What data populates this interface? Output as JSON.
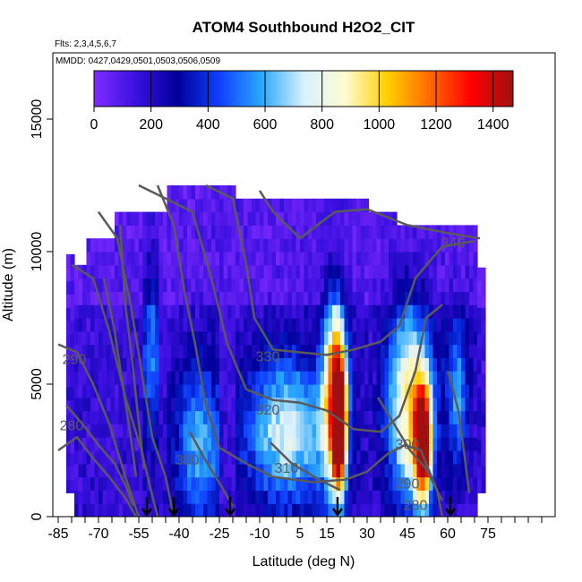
{
  "chart_data": {
    "type": "heatmap",
    "title": "ATOM4 Southbound H2O2_CIT",
    "subtitle_flights": "Flts: 2,3,4,5,6,7",
    "subtitle_dates": "MMDD: 0427,0429,0501,0503,0506,0509",
    "xlabel": "Latitude (deg N)",
    "ylabel": "Altitude (m)",
    "xlim": [
      -87,
      100
    ],
    "ylim": [
      0,
      17500
    ],
    "x_ticks": [
      -85,
      -70,
      -55,
      -40,
      -25,
      -10,
      5,
      15,
      30,
      45,
      60,
      75
    ],
    "x_tick_labels": [
      "-85",
      "-70",
      "-55",
      "-40",
      "-25",
      "-10",
      "5",
      "15",
      "30",
      "45",
      "60",
      "75"
    ],
    "y_ticks": [
      0,
      5000,
      10000,
      15000
    ],
    "y_tick_labels": [
      "0",
      "5000",
      "10000",
      "15000"
    ],
    "colorbar": {
      "range": [
        0,
        1470
      ],
      "ticks": [
        0,
        200,
        400,
        600,
        800,
        1000,
        1200,
        1400
      ],
      "tick_labels": [
        "0",
        "200",
        "400",
        "600",
        "800",
        "1000",
        "1200",
        "1400"
      ]
    },
    "contour_labels": [
      {
        "text": "340",
        "lat": 62,
        "alt": 10300
      },
      {
        "text": "330",
        "lat": -7,
        "alt": 6000
      },
      {
        "text": "320",
        "lat": -7,
        "alt": 4000
      },
      {
        "text": "310",
        "lat": 0,
        "alt": 1800
      },
      {
        "text": "300",
        "lat": -37,
        "alt": 2100
      },
      {
        "text": "300",
        "lat": 45,
        "alt": 2700
      },
      {
        "text": "290",
        "lat": -79,
        "alt": 5900
      },
      {
        "text": "290",
        "lat": 45,
        "alt": 1200
      },
      {
        "text": "280",
        "lat": -80,
        "alt": 3400
      },
      {
        "text": "280",
        "lat": 48,
        "alt": 400
      }
    ],
    "flight_markers_lat": [
      -52,
      -42,
      -21,
      19,
      61
    ]
  },
  "colors": {
    "scale": [
      "#7f2bff",
      "#3a10e0",
      "#00009a",
      "#1040ff",
      "#2aa8ff",
      "#d8f0ff",
      "#fffbd0",
      "#ffd000",
      "#ff6a00",
      "#ff0000",
      "#a01010"
    ],
    "contour": "#5a5a5a"
  }
}
